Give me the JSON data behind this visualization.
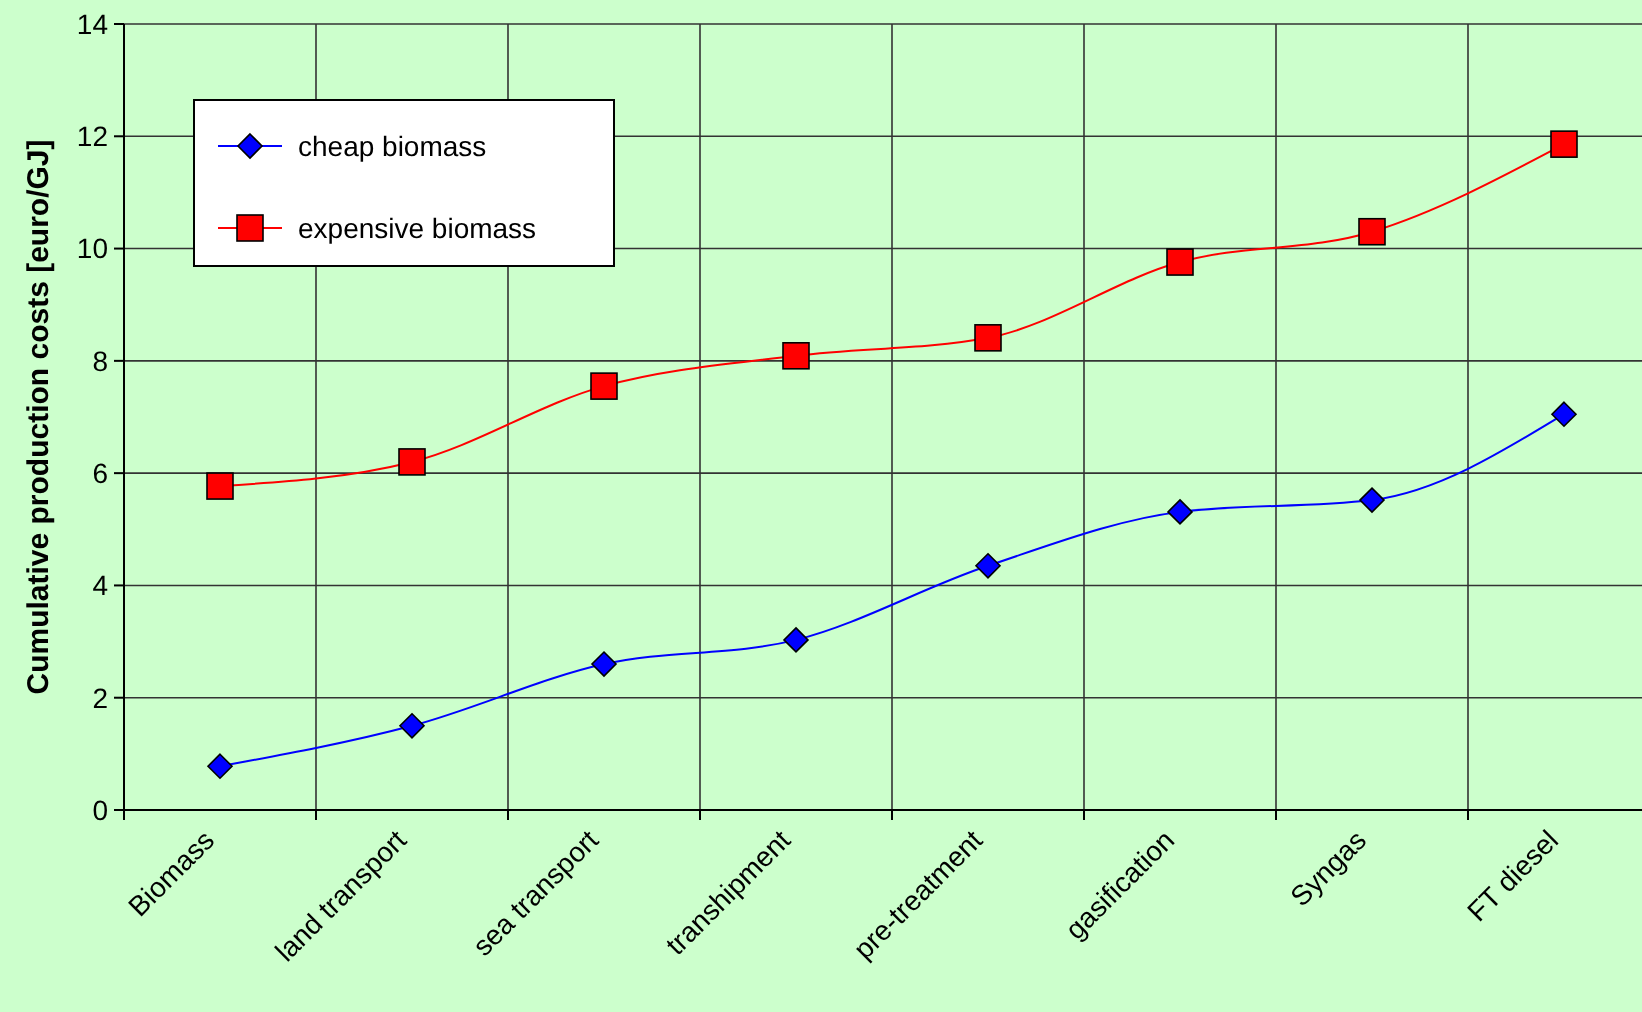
{
  "chart_data": {
    "type": "line",
    "ylabel": "Cumulative production costs [euro/GJ]",
    "categories": [
      "Biomass",
      "land transport",
      "sea transport",
      "transhipment",
      "pre-treatment",
      "gasification",
      "Syngas",
      "FT diesel"
    ],
    "series": [
      {
        "name": "cheap biomass",
        "color": "#0000ff",
        "marker": "diamond",
        "values": [
          0.78,
          1.5,
          2.6,
          3.03,
          4.35,
          5.31,
          5.52,
          7.05
        ]
      },
      {
        "name": "expensive biomass",
        "color": "#ff0000",
        "marker": "square",
        "values": [
          5.77,
          6.2,
          7.55,
          8.09,
          8.41,
          9.76,
          10.3,
          11.86
        ]
      }
    ],
    "ylim": [
      0,
      14
    ],
    "yticks": [
      0,
      2,
      4,
      6,
      8,
      10,
      12,
      14
    ],
    "grid": true,
    "legend": "top left"
  }
}
